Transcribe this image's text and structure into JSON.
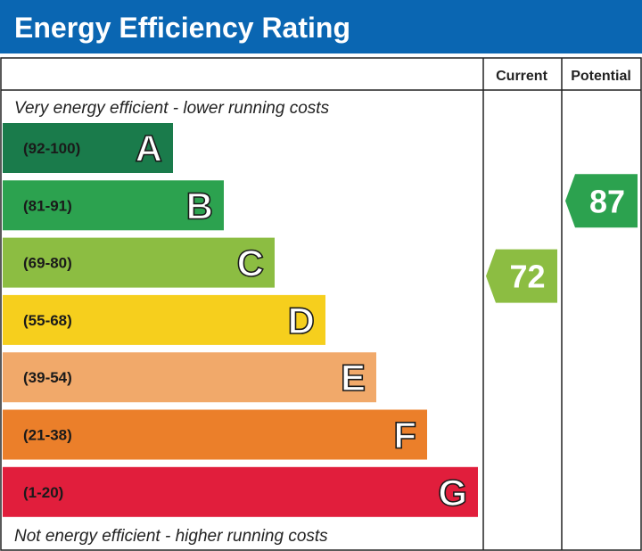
{
  "chart_data": {
    "type": "bar",
    "title": "Energy Efficiency Rating",
    "columns": {
      "current": "Current",
      "potential": "Potential"
    },
    "top_caption": "Very energy efficient - lower running costs",
    "bottom_caption": "Not energy efficient - higher running costs",
    "bands": [
      {
        "letter": "A",
        "range": "(92-100)",
        "min": 92,
        "max": 100,
        "color": "#1a7b4b"
      },
      {
        "letter": "B",
        "range": "(81-91)",
        "min": 81,
        "max": 91,
        "color": "#2ca24f"
      },
      {
        "letter": "C",
        "range": "(69-80)",
        "min": 69,
        "max": 80,
        "color": "#8cbd42"
      },
      {
        "letter": "D",
        "range": "(55-68)",
        "min": 55,
        "max": 68,
        "color": "#f6cf1d"
      },
      {
        "letter": "E",
        "range": "(39-54)",
        "min": 39,
        "max": 54,
        "color": "#f1a96a"
      },
      {
        "letter": "F",
        "range": "(21-38)",
        "min": 21,
        "max": 38,
        "color": "#eb7f2a"
      },
      {
        "letter": "G",
        "range": "(1-20)",
        "min": 1,
        "max": 20,
        "color": "#e11e3c"
      }
    ],
    "current": {
      "value": 72,
      "band": "C",
      "color": "#8cbd42"
    },
    "potential": {
      "value": 87,
      "band": "B",
      "color": "#2ca24f"
    }
  },
  "colors": {
    "header": "#0a66b2",
    "header_text": "#ffffff",
    "grid": "#222222",
    "caption_text": "#222222"
  }
}
